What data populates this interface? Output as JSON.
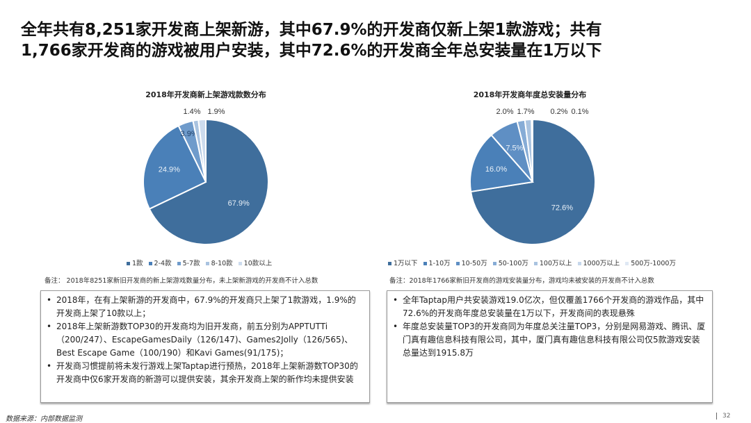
{
  "headline": {
    "line1": "全年共有8,251家开发商上架新游，其中67.9%的开发商仅新上架1款游戏；共有",
    "line2": "1,766家开发商的游戏被用户安装，其中72.6%的开发商全年总安装量在1万以下"
  },
  "chart_data": [
    {
      "type": "pie",
      "title": "2018年开发商新上架游戏款数分布",
      "categories": [
        "1款",
        "2-4款",
        "5-7款",
        "8-10款",
        "10款以上"
      ],
      "values": [
        67.9,
        24.9,
        3.9,
        1.4,
        1.9
      ],
      "labels": [
        "67.9%",
        "24.9%",
        "3.9%",
        "1.4%",
        "1.9%"
      ],
      "colors": [
        "#3f6e9c",
        "#4a80b8",
        "#6f9bcb",
        "#a9c3e0",
        "#cddcee"
      ],
      "legend": "bottom",
      "start": "top",
      "direction": "clockwise"
    },
    {
      "type": "pie",
      "title": "2018年开发商年度总安装量分布",
      "categories": [
        "1万以下",
        "1-10万",
        "10-50万",
        "50-100万",
        "100万以上",
        "1000万以上",
        "500万-1000万"
      ],
      "values": [
        72.6,
        16.0,
        7.5,
        2.0,
        1.7,
        0.2,
        0.1
      ],
      "labels": [
        "72.6%",
        "16.0%",
        "7.5%",
        "2.0%",
        "1.7%",
        "0.2%",
        "0.1%"
      ],
      "colors": [
        "#3f6e9c",
        "#4a80b8",
        "#5f8fc4",
        "#86acd6",
        "#a9c3e0",
        "#c6d7eb",
        "#dfe8f4"
      ],
      "legend": "bottom",
      "start": "top",
      "direction": "clockwise"
    }
  ],
  "notes": [
    "备注： 2018年8251家新旧开发商的新上架游戏数量分布，未上架新游戏的开发商不计入总数",
    "备注：2018年1766家新旧开发商的游戏安装量分布，游戏均未被安装的开发商不计入总数"
  ],
  "left_box": [
    "2018年，在有上架新游的开发商中，67.9%的开发商只上架了1款游戏，1.9%的开发商上架了10款以上；",
    "2018年上架新游数TOP30的开发商均为旧开发商，前五分别为APPTUTTi（200/247）、EscapeGamesDaily（126/147)、Games2Jolly（126/565)、Best Escape Game（100/190）和Kavi Games(91/175)；",
    "开发商习惯提前将未发行游戏上架Taptap进行预热，2018年上架新游数TOP30的开发商中仅6家开发商的新游可以提供安装，其余开发商上架的新作均未提供安装"
  ],
  "right_box": [
    "全年Taptap用户共安装游戏19.0亿次，但仅覆盖1766个开发商的游戏作品，其中72.6%的开发商年度总安装量在1万以下，开发商间的表现悬殊",
    "年度总安装量TOP3的开发商同为年度总关注量TOP3，分别是网易游戏、腾讯、厦门真有趣信息科技有限公司，其中，厦门真有趣信息科技有限公司仅5款游戏安装总量达到1915.8万"
  ],
  "source": "数据来源：内部数据监测",
  "page": "32"
}
